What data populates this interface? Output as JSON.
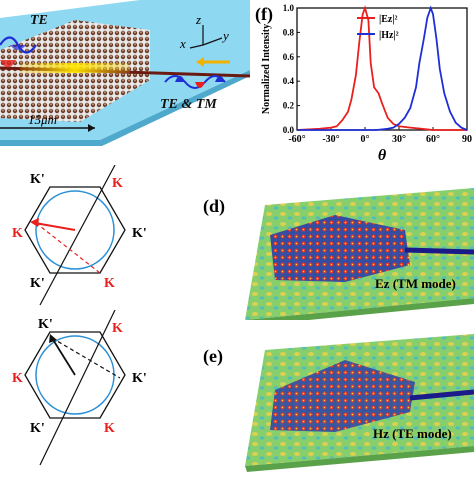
{
  "device_panel": {
    "te_label": "TE",
    "te_tm_label": "TE & TM",
    "length_label": "15μm",
    "axis_z": "z",
    "axis_x": "x",
    "axis_y": "y"
  },
  "chart_panel": {
    "panel_label": "(f)",
    "chart_data": {
      "type": "line",
      "title": "",
      "xlabel": "θ",
      "ylabel": "Normalized Intensity",
      "xlim": [
        -60,
        90
      ],
      "ylim": [
        0,
        1.0
      ],
      "x_ticks": [
        "-60°",
        "-30°",
        "0°",
        "30°",
        "60°",
        "90"
      ],
      "y_ticks": [
        "0.0",
        "0.2",
        "0.4",
        "0.6",
        "0.8",
        "1.0"
      ],
      "legend_position": "top-center",
      "series": [
        {
          "name": "|Ez|²",
          "color": "#e8201e",
          "x": [
            -60,
            -40,
            -30,
            -25,
            -20,
            -15,
            -12,
            -8,
            -5,
            -2,
            0,
            3,
            5,
            8,
            12,
            15,
            20,
            25,
            30,
            40,
            50,
            60,
            90
          ],
          "y": [
            0.0,
            0.01,
            0.02,
            0.03,
            0.08,
            0.15,
            0.25,
            0.45,
            0.72,
            0.95,
            1.0,
            0.9,
            0.55,
            0.35,
            0.3,
            0.22,
            0.1,
            0.05,
            0.03,
            0.02,
            0.01,
            0.0,
            0.0
          ]
        },
        {
          "name": "|Hz|²",
          "color": "#1f2fd6",
          "x": [
            -60,
            10,
            20,
            25,
            30,
            35,
            40,
            45,
            48,
            52,
            55,
            58,
            60,
            63,
            66,
            70,
            75,
            80,
            85,
            90
          ],
          "y": [
            0.0,
            0.0,
            0.01,
            0.02,
            0.05,
            0.1,
            0.18,
            0.35,
            0.55,
            0.75,
            0.92,
            1.0,
            0.95,
            0.75,
            0.5,
            0.3,
            0.15,
            0.06,
            0.02,
            0.0
          ]
        }
      ]
    }
  },
  "hex_top": {
    "labels": {
      "k_prime_top_left": "K'",
      "k_top_right": "K",
      "k_left": "K",
      "k_prime_right": "K'",
      "k_prime_bottom_left": "K'",
      "k_bottom_right": "K"
    }
  },
  "hex_bottom": {
    "labels": {
      "k_prime_top_left": "K'",
      "k_top_right": "K",
      "k_prime_right": "K'",
      "k_left": "K",
      "k_prime_bottom_left": "K'",
      "k_bottom_right": "K"
    }
  },
  "field_d": {
    "panel_label": "(d)",
    "mode_label": "Ez (TM mode)"
  },
  "field_e": {
    "panel_label": "(e)",
    "mode_label": "Hz (TE mode)"
  },
  "colors": {
    "red": "#e8201e",
    "blue": "#1f2fd6",
    "slab": "#7fd3f0",
    "field_bg": "#7ec96a"
  }
}
